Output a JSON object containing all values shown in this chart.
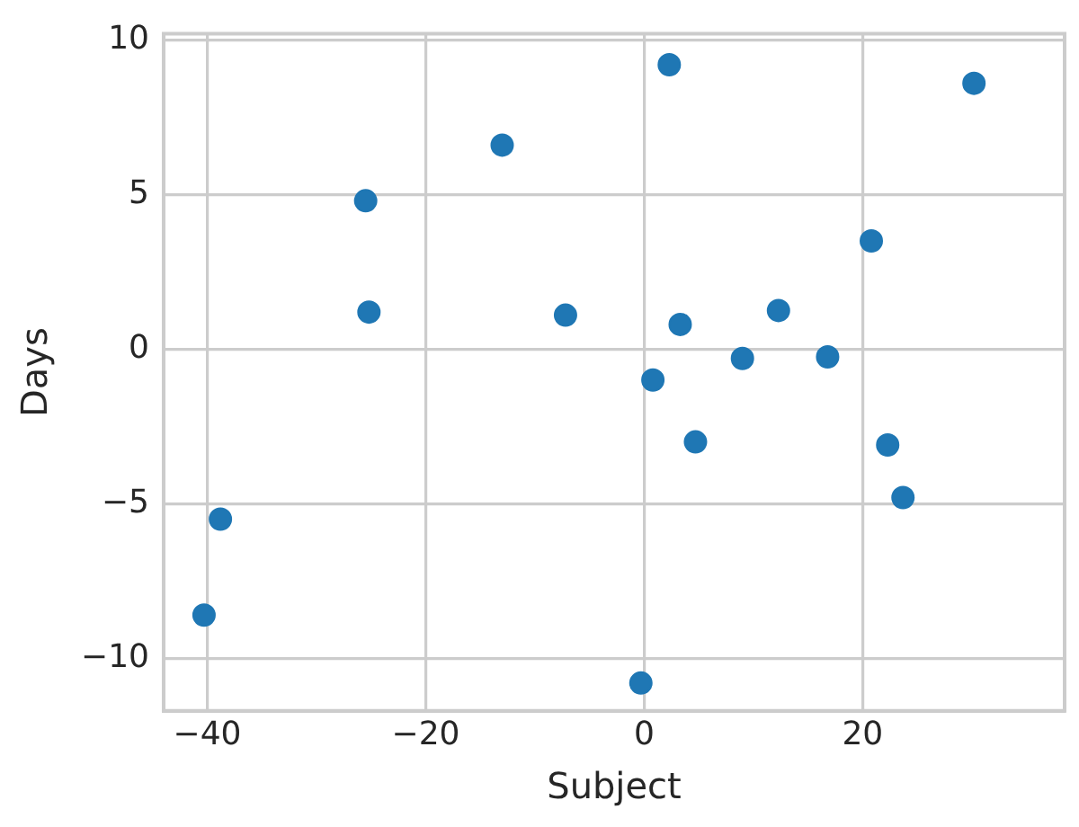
{
  "chart_data": {
    "type": "scatter",
    "xlabel": "Subject",
    "ylabel": "Days",
    "x": [
      2.3,
      30.2,
      -13,
      -25.5,
      20.8,
      -25.2,
      -7.2,
      12.3,
      3.3,
      9,
      16.8,
      0.8,
      4.7,
      22.3,
      23.7,
      -38.8,
      -40.3,
      -0.3
    ],
    "values": [
      9.2,
      8.6,
      6.6,
      4.8,
      3.5,
      1.2,
      1.1,
      1.25,
      0.8,
      -0.3,
      -0.25,
      -1.0,
      -3.0,
      -3.1,
      -4.8,
      -5.5,
      -8.6,
      -10.8
    ],
    "color": "#1f77b4",
    "marker": "circle",
    "xlim": [
      -44,
      38.5
    ],
    "ylim": [
      -11.7,
      10.2
    ],
    "xticks": [
      -40,
      -20,
      0,
      20
    ],
    "yticks": [
      -10,
      -5,
      0,
      5,
      10
    ],
    "grid": true
  }
}
